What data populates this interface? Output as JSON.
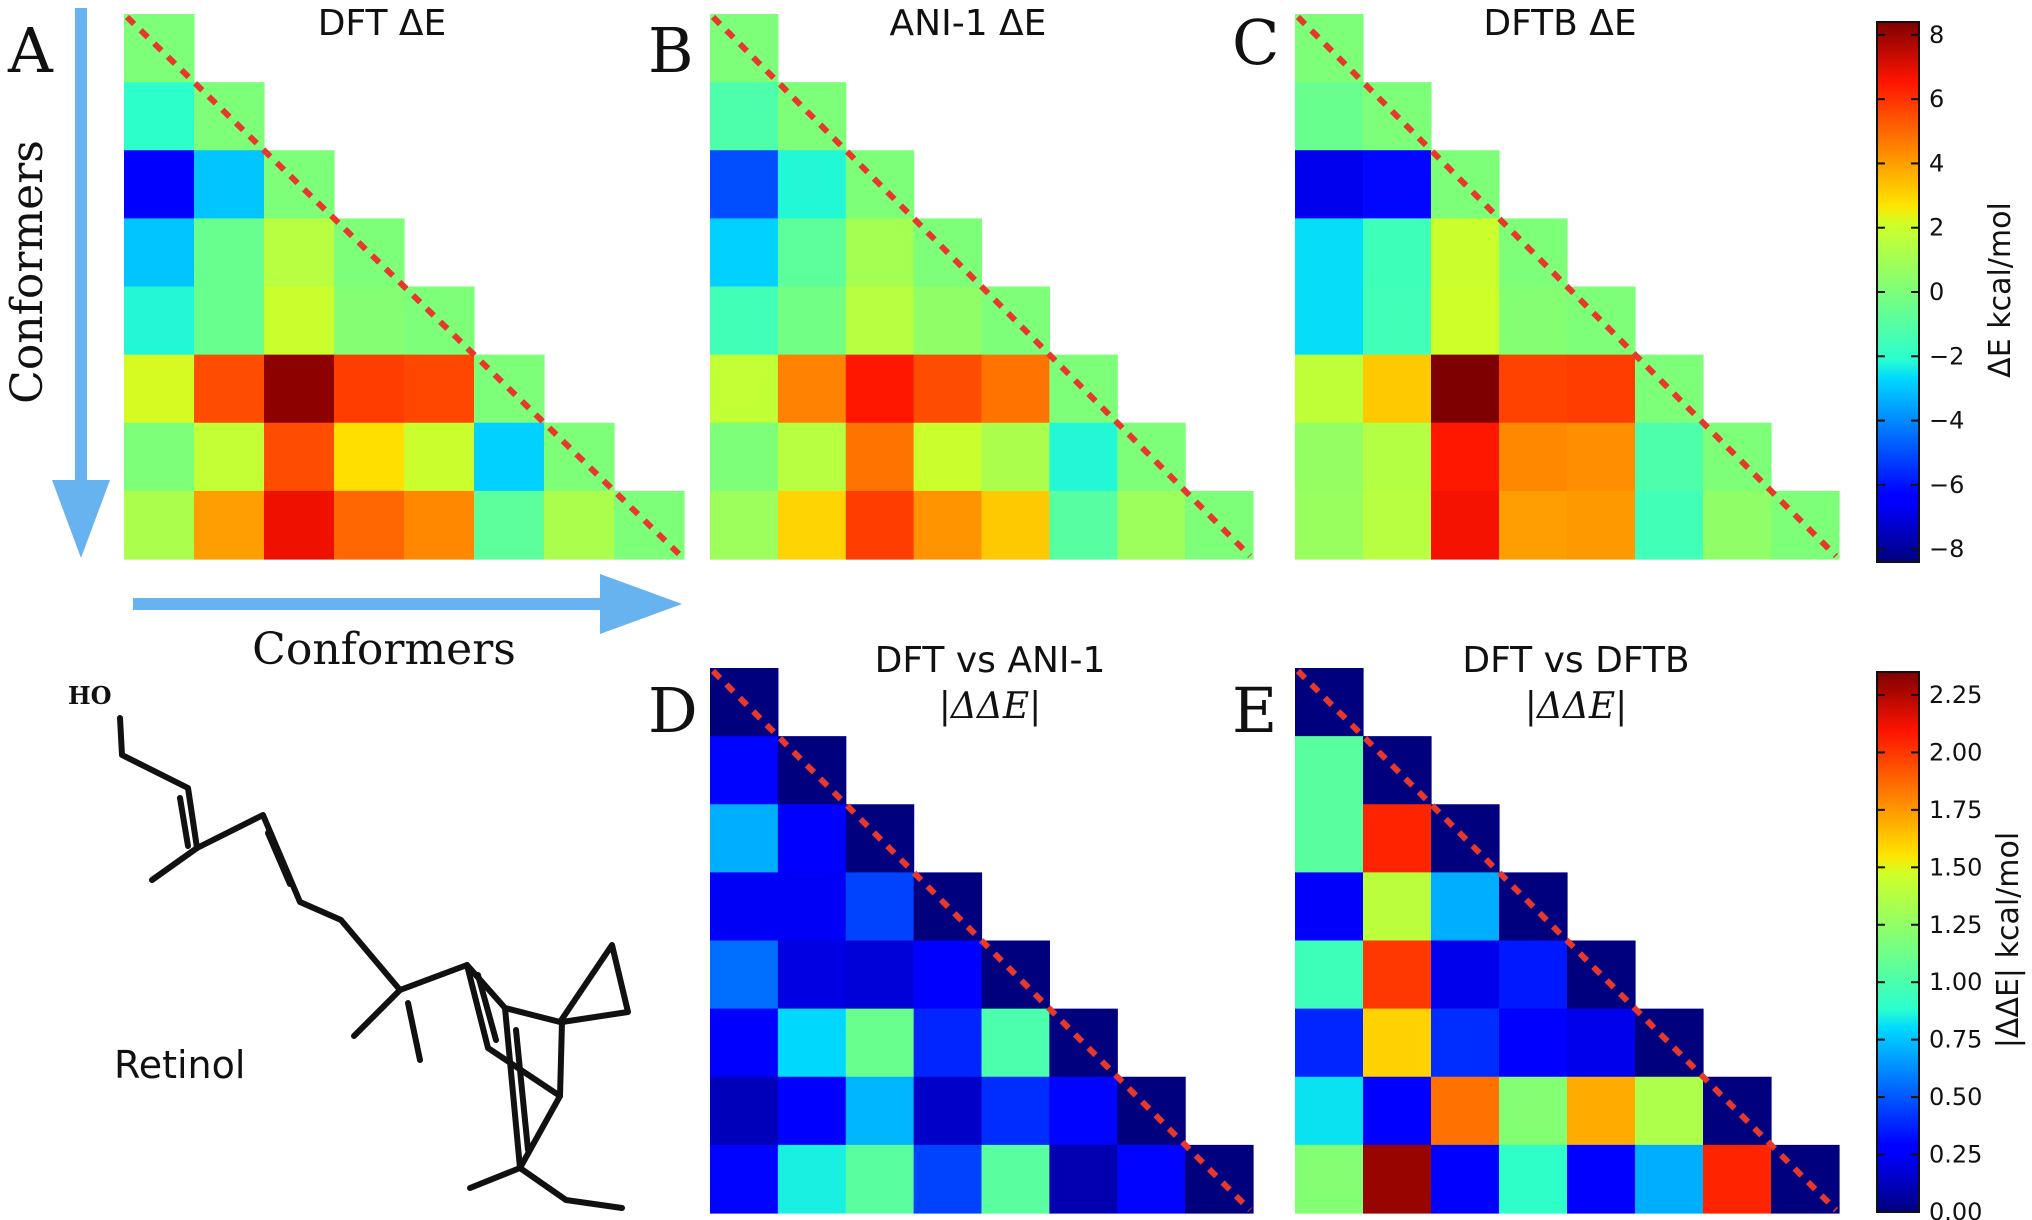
{
  "chart_data": [
    {
      "type": "heatmap",
      "panel": "A",
      "title": "DFT ΔE",
      "colorbar": "dE",
      "rows": [
        [
          0.0
        ],
        [
          -2.0,
          0.0
        ],
        [
          -6.3,
          -3.0,
          0.0
        ],
        [
          -3.0,
          -0.5,
          1.5,
          0.0
        ],
        [
          -2.2,
          -0.5,
          2.0,
          0.2,
          0.0
        ],
        [
          2.2,
          5.5,
          8.2,
          5.8,
          5.6,
          0.0
        ],
        [
          0.0,
          1.8,
          5.5,
          2.8,
          2.0,
          -2.8,
          0.0
        ],
        [
          1.2,
          4.0,
          6.8,
          5.0,
          4.4,
          -0.8,
          1.2,
          0.0
        ]
      ]
    },
    {
      "type": "heatmap",
      "panel": "B",
      "title": "ANI-1 ΔE",
      "colorbar": "dE",
      "rows": [
        [
          0.0
        ],
        [
          -1.2,
          0.0
        ],
        [
          -5.0,
          -2.2,
          0.0
        ],
        [
          -2.8,
          -0.8,
          1.0,
          0.0
        ],
        [
          -1.5,
          -0.3,
          1.5,
          0.5,
          0.0
        ],
        [
          1.8,
          4.5,
          6.5,
          5.5,
          4.8,
          0.0
        ],
        [
          0.0,
          1.5,
          4.8,
          2.0,
          1.2,
          -2.2,
          0.0
        ],
        [
          0.8,
          3.0,
          5.8,
          4.2,
          3.2,
          -1.0,
          0.8,
          0.0
        ]
      ]
    },
    {
      "type": "heatmap",
      "panel": "C",
      "title": "DFTB ΔE",
      "colorbar": "dE",
      "rows": [
        [
          0.0
        ],
        [
          -0.5,
          0.0
        ],
        [
          -6.8,
          -6.2,
          0.0
        ],
        [
          -2.6,
          -1.6,
          2.0,
          0.0
        ],
        [
          -2.6,
          -1.5,
          2.1,
          0.2,
          0.0
        ],
        [
          1.7,
          3.2,
          8.4,
          5.7,
          5.8,
          0.0
        ],
        [
          0.6,
          1.4,
          6.5,
          4.4,
          4.3,
          -1.2,
          0.0
        ],
        [
          0.7,
          1.5,
          6.7,
          4.0,
          4.1,
          -1.5,
          0.5,
          0.0
        ]
      ]
    },
    {
      "type": "heatmap",
      "panel": "D",
      "title": "DFT vs ANI-1",
      "subtitle": "|ΔΔE|",
      "colorbar": "ddE",
      "rows": [
        [
          0.0
        ],
        [
          0.3,
          0.0
        ],
        [
          0.7,
          0.28,
          0.0
        ],
        [
          0.24,
          0.24,
          0.45,
          0.0
        ],
        [
          0.55,
          0.2,
          0.18,
          0.28,
          0.0
        ],
        [
          0.28,
          0.8,
          1.1,
          0.38,
          1.0,
          0.0
        ],
        [
          0.12,
          0.28,
          0.72,
          0.15,
          0.4,
          0.3,
          0.0
        ],
        [
          0.3,
          0.85,
          1.05,
          0.45,
          1.05,
          0.1,
          0.3,
          0.0
        ]
      ]
    },
    {
      "type": "heatmap",
      "panel": "E",
      "title": "DFT vs DFTB",
      "subtitle": "|ΔΔE|",
      "colorbar": "ddE",
      "rows": [
        [
          0.0
        ],
        [
          1.05,
          0.0
        ],
        [
          1.05,
          2.05,
          0.0
        ],
        [
          0.25,
          1.4,
          0.7,
          0.0
        ],
        [
          0.95,
          2.0,
          0.22,
          0.35,
          0.0
        ],
        [
          0.38,
          1.6,
          0.4,
          0.28,
          0.22,
          0.0
        ],
        [
          0.82,
          0.28,
          1.85,
          1.2,
          1.7,
          1.35,
          0.0
        ],
        [
          1.2,
          2.3,
          0.28,
          0.9,
          0.28,
          0.7,
          2.05,
          0.0
        ]
      ]
    }
  ],
  "colorbars": {
    "dE": {
      "label": "ΔE kcal/mol",
      "min": -8.4,
      "max": 8.4,
      "ticks": [
        "8",
        "6",
        "4",
        "2",
        "0",
        "−2",
        "−4",
        "−6",
        "−8"
      ],
      "tick_values": [
        8,
        6,
        4,
        2,
        0,
        -2,
        -4,
        -6,
        -8
      ]
    },
    "ddE": {
      "label": "|ΔΔE| kcal/mol",
      "min": 0.0,
      "max": 2.35,
      "ticks": [
        "2.25",
        "2.00",
        "1.75",
        "1.50",
        "1.25",
        "1.00",
        "0.75",
        "0.50",
        "0.25",
        "0.00"
      ],
      "tick_values": [
        2.25,
        2.0,
        1.75,
        1.5,
        1.25,
        1.0,
        0.75,
        0.5,
        0.25,
        0.0
      ]
    }
  },
  "axes": {
    "x_label": "Conformers",
    "y_label": "Conformers"
  },
  "molecule": {
    "name": "Retinol",
    "hydroxyl": "HO"
  },
  "colors": {
    "arrow": "#66b3f0",
    "diagonal": "#e8382c",
    "lines": "#111111"
  }
}
